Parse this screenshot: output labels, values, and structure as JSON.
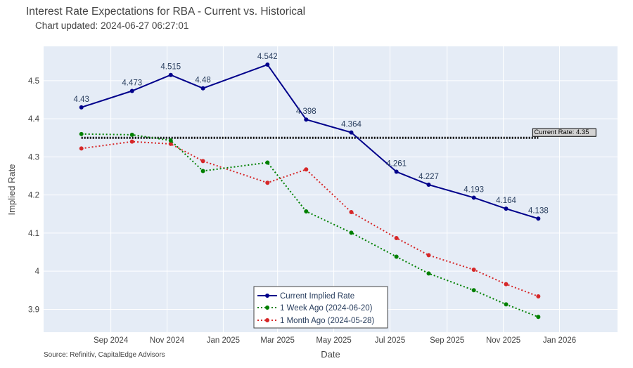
{
  "title": "Interest Rate Expectations for RBA - Current vs. Historical",
  "subtitle": "Chart updated: 2024-06-27 06:27:01",
  "source": "Source: Refinitiv, CapitalEdge Advisors",
  "colors": {
    "plot_bg": "#e5ecf6",
    "grid": "#ffffff",
    "current": "#00008b",
    "week": "#008000",
    "month": "#d62728",
    "ref_line": "#000000"
  },
  "chart_data": {
    "type": "line",
    "xlabel": "Date",
    "ylabel": "Implied Rate",
    "x_axis_type": "date",
    "xlim": [
      "2024-06-20",
      "2026-03-05"
    ],
    "ylim": [
      3.84,
      4.59
    ],
    "y_ticks": [
      3.9,
      4.0,
      4.1,
      4.2,
      4.3,
      4.4,
      4.5
    ],
    "y_tick_labels": [
      "3.9",
      "4",
      "4.1",
      "4.2",
      "4.3",
      "4.4",
      "4.5"
    ],
    "x_ticks": [
      "2024-09-01",
      "2024-11-01",
      "2025-01-01",
      "2025-03-01",
      "2025-05-01",
      "2025-07-01",
      "2025-09-01",
      "2025-11-01",
      "2026-01-01"
    ],
    "x_tick_labels": [
      "Sep 2024",
      "Nov 2024",
      "Jan 2025",
      "Mar 2025",
      "May 2025",
      "Jul 2025",
      "Sep 2025",
      "Nov 2025",
      "Jan 2026"
    ],
    "x": [
      "2024-07-31",
      "2024-09-24",
      "2024-11-05",
      "2024-12-10",
      "2025-02-18",
      "2025-04-01",
      "2025-05-20",
      "2025-07-08",
      "2025-08-12",
      "2025-09-30",
      "2025-11-04",
      "2025-12-09"
    ],
    "series": [
      {
        "name": "Current Implied Rate",
        "color": "#00008b",
        "dash": "solid",
        "values": [
          4.43,
          4.473,
          4.515,
          4.48,
          4.542,
          4.398,
          4.364,
          4.261,
          4.227,
          4.193,
          4.164,
          4.138
        ],
        "data_labels": [
          "4.43",
          "4.473",
          "4.515",
          "4.48",
          "4.542",
          "4.398",
          "4.364",
          "4.261",
          "4.227",
          "4.193",
          "4.164",
          "4.138"
        ]
      },
      {
        "name": "1 Week Ago (2024-06-20)",
        "color": "#008000",
        "dash": "dot",
        "values": [
          4.36,
          4.358,
          4.343,
          4.263,
          4.285,
          4.157,
          4.101,
          4.038,
          3.994,
          3.95,
          3.913,
          3.88
        ]
      },
      {
        "name": "1 Month Ago (2024-05-28)",
        "color": "#d62728",
        "dash": "dot",
        "values": [
          4.322,
          4.34,
          4.334,
          4.289,
          4.232,
          4.267,
          4.155,
          4.087,
          4.042,
          4.004,
          3.966,
          3.934
        ]
      }
    ],
    "reference_line": {
      "label": "Current Rate: 4.35",
      "value": 4.35,
      "x_start": "2024-07-31",
      "x_end": "2025-12-09"
    },
    "legend": {
      "position": "bottom-center",
      "entries": [
        "Current Implied Rate",
        "1 Week Ago (2024-06-20)",
        "1 Month Ago (2024-05-28)"
      ]
    }
  }
}
